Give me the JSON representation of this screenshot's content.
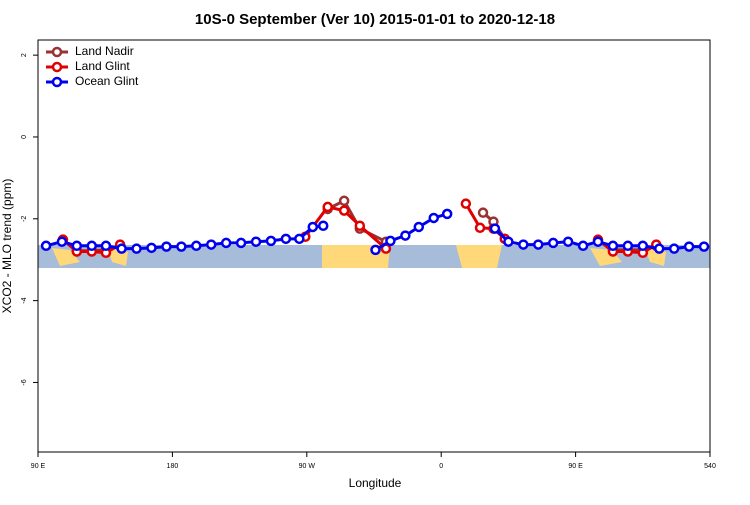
{
  "chart_data": {
    "type": "line",
    "title": "10S-0 September (Ver 10)   2015-01-01 to 2020-12-18",
    "xlabel": "Longitude",
    "ylabel": "XCO2 - MLO trend (ppm)",
    "xlim": [
      90,
      540
    ],
    "ylim": [
      -7.7,
      2.37
    ],
    "xticks": [
      {
        "value": 90,
        "label": "90 E"
      },
      180,
      {
        "value": 270,
        "label": "90 W"
      },
      {
        "value": 360,
        "label": "0"
      },
      {
        "value": 450,
        "label": "90 E"
      },
      540
    ],
    "yticks": [
      -6,
      -4,
      -2,
      0,
      2
    ],
    "grid": false,
    "legend": "top-left",
    "series": [
      {
        "name": "Land Nadir",
        "color": "#993333",
        "x": [
          106.7,
          116,
          126,
          135.5,
          145,
          null,
          284,
          295,
          305.5,
          323,
          null,
          388,
          395,
          402.6,
          null,
          465,
          475,
          485,
          495,
          504
        ],
        "values": [
          -2.51,
          -2.78,
          -2.78,
          -2.76,
          -2.66,
          null,
          -1.76,
          -1.56,
          -2.24,
          -2.56,
          null,
          -1.85,
          -2.07,
          -2.49,
          null,
          -2.54,
          -2.76,
          -2.76,
          -2.76,
          -2.66
        ]
      },
      {
        "name": "Land Glint",
        "color": "#e00000",
        "x": [
          106.7,
          116,
          126,
          135.5,
          145,
          null,
          269,
          284,
          295,
          305.5,
          323,
          null,
          376.5,
          386,
          395,
          402.6,
          null,
          465,
          475,
          485,
          495,
          504
        ],
        "values": [
          -2.51,
          -2.8,
          -2.8,
          -2.83,
          -2.63,
          null,
          -2.44,
          -1.71,
          -1.8,
          -2.17,
          -2.73,
          null,
          -1.63,
          -2.22,
          -2.24,
          -2.49,
          null,
          -2.51,
          -2.8,
          -2.8,
          -2.83,
          -2.63
        ]
      },
      {
        "name": "Ocean Glint",
        "color": "#0000ee",
        "x": [
          95.4,
          106,
          116,
          126,
          135.5,
          146,
          156,
          166,
          176,
          186,
          196,
          206,
          216,
          226,
          236,
          246,
          256,
          265,
          274,
          281,
          null,
          316,
          326,
          336,
          345,
          355,
          364,
          null,
          396,
          405,
          415,
          425,
          435,
          445,
          455,
          465,
          475,
          485,
          495,
          506,
          516,
          526,
          536
        ],
        "values": [
          -2.66,
          -2.56,
          -2.66,
          -2.66,
          -2.66,
          -2.73,
          -2.73,
          -2.71,
          -2.68,
          -2.68,
          -2.66,
          -2.63,
          -2.59,
          -2.59,
          -2.56,
          -2.54,
          -2.49,
          -2.49,
          -2.2,
          -2.17,
          null,
          -2.76,
          -2.54,
          -2.41,
          -2.2,
          -1.98,
          -1.88,
          null,
          -2.24,
          -2.56,
          -2.63,
          -2.63,
          -2.59,
          -2.56,
          -2.66,
          -2.56,
          -2.66,
          -2.66,
          -2.66,
          -2.73,
          -2.73,
          -2.68,
          -2.68
        ]
      }
    ]
  }
}
